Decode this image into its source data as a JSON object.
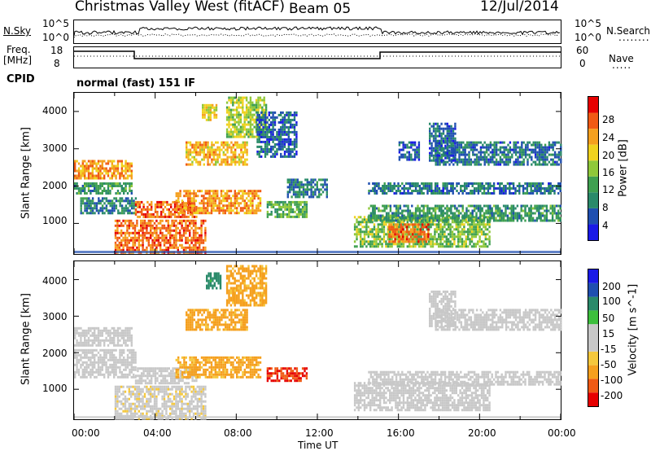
{
  "header": {
    "radar": "Christmas Valley West (fitACF)",
    "beam": "Beam 05",
    "date": "12/Jul/2014"
  },
  "noise_panel": {
    "left_label": "N.Sky",
    "right_label": "N.Search",
    "left_ticks": [
      "10^5",
      "10^0"
    ],
    "right_ticks": [
      "10^5",
      "10^0"
    ]
  },
  "freq_panel": {
    "left_label_1": "Freq.",
    "left_label_2": "[MHz]",
    "right_label": "Nave",
    "left_ticks": [
      "18",
      "8"
    ],
    "right_ticks": [
      "60",
      "0"
    ]
  },
  "cpid_panel": {
    "label": "CPID",
    "mode": "normal (fast) 151 IF"
  },
  "colors": {
    "power_scale": [
      "#1a1ae6",
      "#1f4fb0",
      "#2a8a6a",
      "#3fa050",
      "#8fc83a",
      "#f0d21e",
      "#f5a01e",
      "#f05a14",
      "#e60000"
    ],
    "velocity_scale": [
      "#e60000",
      "#f05a14",
      "#f5a01e",
      "#f5c83c",
      "#c8c8c8",
      "#c8c8c8",
      "#3cbf3c",
      "#2a8a6a",
      "#1f4fb0",
      "#1a1ae6"
    ]
  },
  "chart_data": [
    {
      "type": "heatmap",
      "title": "",
      "ylabel": "Slant Range [km]",
      "xlabel": "",
      "ylim": [
        180,
        4500
      ],
      "xlim_hours": [
        0,
        24
      ],
      "yticks": [
        "1000",
        "2000",
        "3000",
        "4000"
      ],
      "colorbar": {
        "label": "Power [dB]",
        "ticks": [
          "4",
          "8",
          "12",
          "16",
          "20",
          "24",
          "28"
        ],
        "range": [
          0,
          30
        ]
      },
      "echo_regions": [
        {
          "t0": 0.0,
          "t1": 2.8,
          "r0": 2200,
          "r1": 2700,
          "level": 22
        },
        {
          "t0": 0.0,
          "t1": 2.8,
          "r0": 1800,
          "r1": 2100,
          "level": 10
        },
        {
          "t0": 0.3,
          "t1": 3.0,
          "r0": 1300,
          "r1": 1700,
          "level": 8
        },
        {
          "t0": 2.0,
          "t1": 6.5,
          "r0": 200,
          "r1": 1100,
          "level": 24
        },
        {
          "t0": 3.0,
          "t1": 6.0,
          "r0": 1150,
          "r1": 1600,
          "level": 24
        },
        {
          "t0": 5.0,
          "t1": 9.2,
          "r0": 1300,
          "r1": 1900,
          "level": 22
        },
        {
          "t0": 5.5,
          "t1": 8.5,
          "r0": 2600,
          "r1": 3200,
          "level": 20
        },
        {
          "t0": 6.3,
          "t1": 7.0,
          "r0": 3750,
          "r1": 4200,
          "level": 18
        },
        {
          "t0": 7.5,
          "t1": 9.5,
          "r0": 3300,
          "r1": 4400,
          "level": 16
        },
        {
          "t0": 9.0,
          "t1": 11.0,
          "r0": 2800,
          "r1": 4000,
          "level": 6
        },
        {
          "t0": 9.5,
          "t1": 11.5,
          "r0": 1200,
          "r1": 1600,
          "level": 12
        },
        {
          "t0": 10.5,
          "t1": 12.5,
          "r0": 1700,
          "r1": 2200,
          "level": 8
        },
        {
          "t0": 13.8,
          "t1": 20.5,
          "r0": 400,
          "r1": 1200,
          "level": 14
        },
        {
          "t0": 15.5,
          "t1": 17.5,
          "r0": 500,
          "r1": 1000,
          "level": 24
        },
        {
          "t0": 14.5,
          "t1": 24.0,
          "r0": 1100,
          "r1": 1500,
          "level": 10
        },
        {
          "t0": 14.5,
          "t1": 24.0,
          "r0": 1800,
          "r1": 2100,
          "level": 7
        },
        {
          "t0": 17.8,
          "t1": 24.0,
          "r0": 2600,
          "r1": 3200,
          "level": 7
        },
        {
          "t0": 17.5,
          "t1": 18.8,
          "r0": 2700,
          "r1": 3700,
          "level": 6
        },
        {
          "t0": 16.0,
          "t1": 17.0,
          "r0": 2700,
          "r1": 3200,
          "level": 5
        }
      ]
    },
    {
      "type": "heatmap",
      "title": "",
      "ylabel": "Slant Range [km]",
      "xlabel": "Time UT",
      "ylim": [
        180,
        4500
      ],
      "xlim_hours": [
        0,
        24
      ],
      "yticks": [
        "1000",
        "2000",
        "3000",
        "4000"
      ],
      "xticks": [
        "00:00",
        "04:00",
        "08:00",
        "12:00",
        "16:00",
        "20:00",
        "00:00"
      ],
      "colorbar": {
        "label": "Velocity [m s^-1]",
        "ticks": [
          "-200",
          "-100",
          "-50",
          "-15",
          "15",
          "50",
          "100",
          "200"
        ],
        "range": [
          -250,
          250
        ]
      },
      "echo_regions": [
        {
          "t0": 0.0,
          "t1": 2.8,
          "r0": 2200,
          "r1": 2700,
          "level": 0
        },
        {
          "t0": 0.0,
          "t1": 3.0,
          "r0": 1300,
          "r1": 2100,
          "level": 0
        },
        {
          "t0": 2.0,
          "t1": 6.5,
          "r0": 200,
          "r1": 1100,
          "level": -5
        },
        {
          "t0": 3.0,
          "t1": 6.0,
          "r0": 1150,
          "r1": 1600,
          "level": 0
        },
        {
          "t0": 5.0,
          "t1": 9.2,
          "r0": 1300,
          "r1": 1900,
          "level": -60
        },
        {
          "t0": 5.5,
          "t1": 8.5,
          "r0": 2600,
          "r1": 3200,
          "level": -60
        },
        {
          "t0": 7.5,
          "t1": 9.5,
          "r0": 3300,
          "r1": 4400,
          "level": -60
        },
        {
          "t0": 6.5,
          "t1": 7.2,
          "r0": 3750,
          "r1": 4200,
          "level": 60
        },
        {
          "t0": 9.5,
          "t1": 11.5,
          "r0": 1200,
          "r1": 1600,
          "level": -200
        },
        {
          "t0": 13.8,
          "t1": 20.5,
          "r0": 400,
          "r1": 1200,
          "level": 0
        },
        {
          "t0": 14.5,
          "t1": 24.0,
          "r0": 1100,
          "r1": 1500,
          "level": 0
        },
        {
          "t0": 17.8,
          "t1": 24.0,
          "r0": 2600,
          "r1": 3200,
          "level": 0
        },
        {
          "t0": 17.5,
          "t1": 18.8,
          "r0": 2700,
          "r1": 3700,
          "level": 0
        }
      ]
    }
  ]
}
